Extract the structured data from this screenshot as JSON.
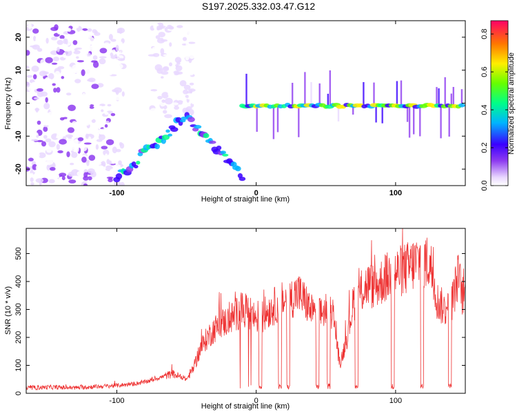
{
  "title": "S197.2025.332.03.47.G12",
  "chart_data": [
    {
      "type": "heatmap",
      "xlabel": "Height of straight line (km)",
      "ylabel": "Frequency (Hz)",
      "xlim": [
        -165,
        150
      ],
      "ylim": [
        -25,
        25
      ],
      "xticks": [
        -100,
        0,
        100
      ],
      "yticks": [
        -20,
        -10,
        0,
        10,
        20
      ],
      "colorbar": {
        "label": "Normalized spectral amplitude",
        "range": [
          0,
          0.87
        ],
        "ticks": [
          "0.0",
          "0.2",
          "0.4",
          "0.6",
          "0.8"
        ],
        "tick_values": [
          0,
          0.2,
          0.4,
          0.6,
          0.8
        ]
      },
      "features": [
        {
          "name": "noise-left",
          "x_range": [
            -165,
            -95
          ],
          "f_range": [
            -25,
            24
          ],
          "amplitude": 0.1
        },
        {
          "name": "noise-mid",
          "x_range": [
            -75,
            -45
          ],
          "f_range": [
            -5,
            24
          ],
          "amplitude": 0.06
        },
        {
          "name": "diagonal-track",
          "x_start": -100,
          "f_start": -23,
          "x_end": -10,
          "f_end": -22,
          "amplitude": 0.3
        },
        {
          "name": "constant-track",
          "x_start": -10,
          "x_end": 148,
          "frequency": -0.8,
          "amplitude": 0.45
        }
      ]
    },
    {
      "type": "line",
      "xlabel": "Height of straight line (km)",
      "ylabel": "SNR (10 * v/v)",
      "xlim": [
        -165,
        150
      ],
      "ylim": [
        0,
        590
      ],
      "xticks": [
        -100,
        0,
        100
      ],
      "yticks": [
        0,
        100,
        200,
        300,
        400,
        500
      ],
      "series": [
        {
          "name": "SNR",
          "color": "#ee3333",
          "x": [
            -165,
            -150,
            -130,
            -110,
            -100,
            -90,
            -80,
            -70,
            -60,
            -50,
            -45,
            -40,
            -35,
            -30,
            -25,
            -20,
            -15,
            -10,
            -5,
            0,
            5,
            10,
            15,
            20,
            25,
            30,
            35,
            40,
            45,
            50,
            55,
            60,
            65,
            70,
            75,
            80,
            85,
            90,
            95,
            100,
            105,
            110,
            115,
            120,
            125,
            130,
            135,
            140,
            145,
            148
          ],
          "values": [
            18,
            22,
            20,
            25,
            28,
            32,
            40,
            55,
            70,
            50,
            90,
            160,
            200,
            230,
            250,
            260,
            280,
            300,
            285,
            270,
            280,
            300,
            320,
            330,
            340,
            360,
            330,
            290,
            280,
            300,
            290,
            100,
            200,
            330,
            360,
            390,
            380,
            400,
            420,
            430,
            440,
            450,
            470,
            480,
            460,
            330,
            300,
            320,
            420,
            350
          ],
          "dropouts": [
            3,
            17,
            23,
            44,
            52,
            72,
            98,
            119,
            139
          ]
        }
      ]
    }
  ]
}
